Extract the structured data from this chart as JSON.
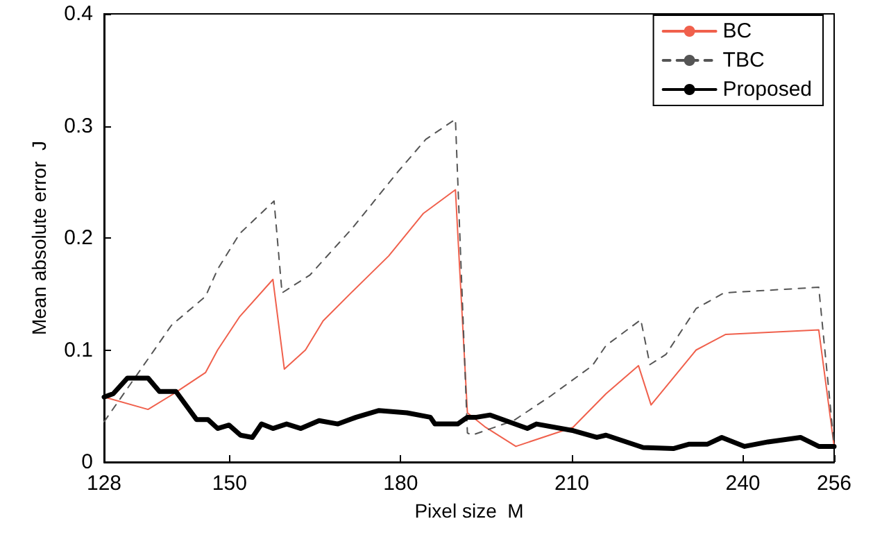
{
  "chart_data": {
    "type": "line",
    "xlabel": "Pixel size  M",
    "ylabel": "Mean absolute error  J",
    "xlim": [
      128,
      256
    ],
    "xticks": [
      128,
      150,
      180,
      210,
      240,
      256
    ],
    "ylim": [
      0,
      0.4
    ],
    "yticks": [
      0,
      0.1,
      0.2,
      0.3,
      0.4
    ],
    "grid": false,
    "legend": "top right",
    "marker": "none",
    "series": [
      {
        "name": "BC",
        "color": "#f0604c",
        "line_style": "solid",
        "x": [
          128,
          135.7,
          140.2,
          145.8,
          147.9,
          151.8,
          157.6,
          159.6,
          163.3,
          166.4,
          171.3,
          177.9,
          184,
          189.6,
          191.7,
          194.9,
          200.2,
          210.2,
          216,
          221.7,
          223.9,
          231.8,
          237,
          253.3,
          256
        ],
        "values": [
          0.058,
          0.047,
          0.061,
          0.08,
          0.1,
          0.13,
          0.163,
          0.083,
          0.1,
          0.126,
          0.151,
          0.184,
          0.222,
          0.243,
          0.044,
          0.031,
          0.014,
          0.031,
          0.061,
          0.086,
          0.051,
          0.1,
          0.114,
          0.118,
          0.014
        ]
      },
      {
        "name": "TBC",
        "color": "#555555",
        "line_style": "dashed",
        "x": [
          128,
          135.7,
          139.8,
          145.8,
          147.9,
          151.8,
          157.8,
          159.2,
          164.1,
          171.4,
          179.5,
          184.4,
          189.6,
          191.7,
          192.5,
          199.8,
          206.3,
          213.6,
          216,
          222.1,
          223.7,
          226.5,
          231.8,
          236.7,
          253.3,
          256
        ],
        "values": [
          0.036,
          0.092,
          0.122,
          0.148,
          0.172,
          0.204,
          0.233,
          0.151,
          0.167,
          0.208,
          0.259,
          0.288,
          0.306,
          0.026,
          0.024,
          0.037,
          0.059,
          0.086,
          0.104,
          0.127,
          0.087,
          0.096,
          0.137,
          0.151,
          0.156,
          0.015
        ]
      },
      {
        "name": "Proposed",
        "color": "#000000",
        "line_style": "solid",
        "x": [
          128,
          129.6,
          132.1,
          135.7,
          137.7,
          140.6,
          144.2,
          146.2,
          147.9,
          149.9,
          151.9,
          154,
          155.6,
          157.6,
          160,
          162.5,
          165.7,
          169,
          172.2,
          176.2,
          181.1,
          185.2,
          186,
          190,
          191.7,
          193.3,
          195.7,
          202.2,
          203.8,
          210.3,
          214.4,
          216,
          222.5,
          227.8,
          230.6,
          233.8,
          236.3,
          240.3,
          244.4,
          250.1,
          253.3,
          256
        ],
        "values": [
          0.058,
          0.061,
          0.075,
          0.075,
          0.063,
          0.063,
          0.038,
          0.038,
          0.03,
          0.033,
          0.024,
          0.022,
          0.034,
          0.03,
          0.034,
          0.03,
          0.037,
          0.034,
          0.04,
          0.046,
          0.044,
          0.04,
          0.034,
          0.034,
          0.04,
          0.04,
          0.042,
          0.03,
          0.034,
          0.028,
          0.022,
          0.024,
          0.013,
          0.012,
          0.016,
          0.016,
          0.022,
          0.014,
          0.018,
          0.022,
          0.014,
          0.014
        ]
      }
    ]
  }
}
